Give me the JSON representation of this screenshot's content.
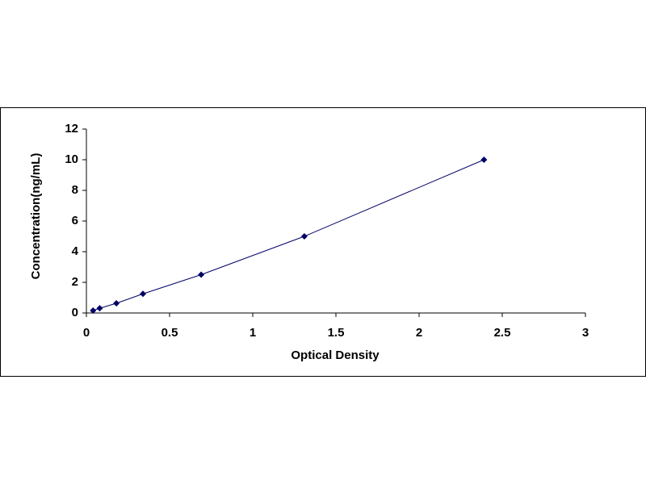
{
  "chart_data": {
    "type": "scatter",
    "connect_points": true,
    "x_label": "Optical Density",
    "y_label": "Concentration(ng/mL)",
    "series": [
      {
        "color": "#000066",
        "x": [
          0.04,
          0.08,
          0.18,
          0.34,
          0.69,
          1.31,
          2.39
        ],
        "values": [
          0.16,
          0.31,
          0.63,
          1.25,
          2.5,
          5,
          10
        ]
      }
    ],
    "xlim": [
      0,
      3
    ],
    "xticks": [
      0,
      0.5,
      1,
      1.5,
      2,
      2.5,
      3
    ],
    "ylim": [
      0,
      12
    ],
    "yticks": [
      0,
      2,
      4,
      6,
      8,
      10,
      12
    ],
    "grid": false
  }
}
